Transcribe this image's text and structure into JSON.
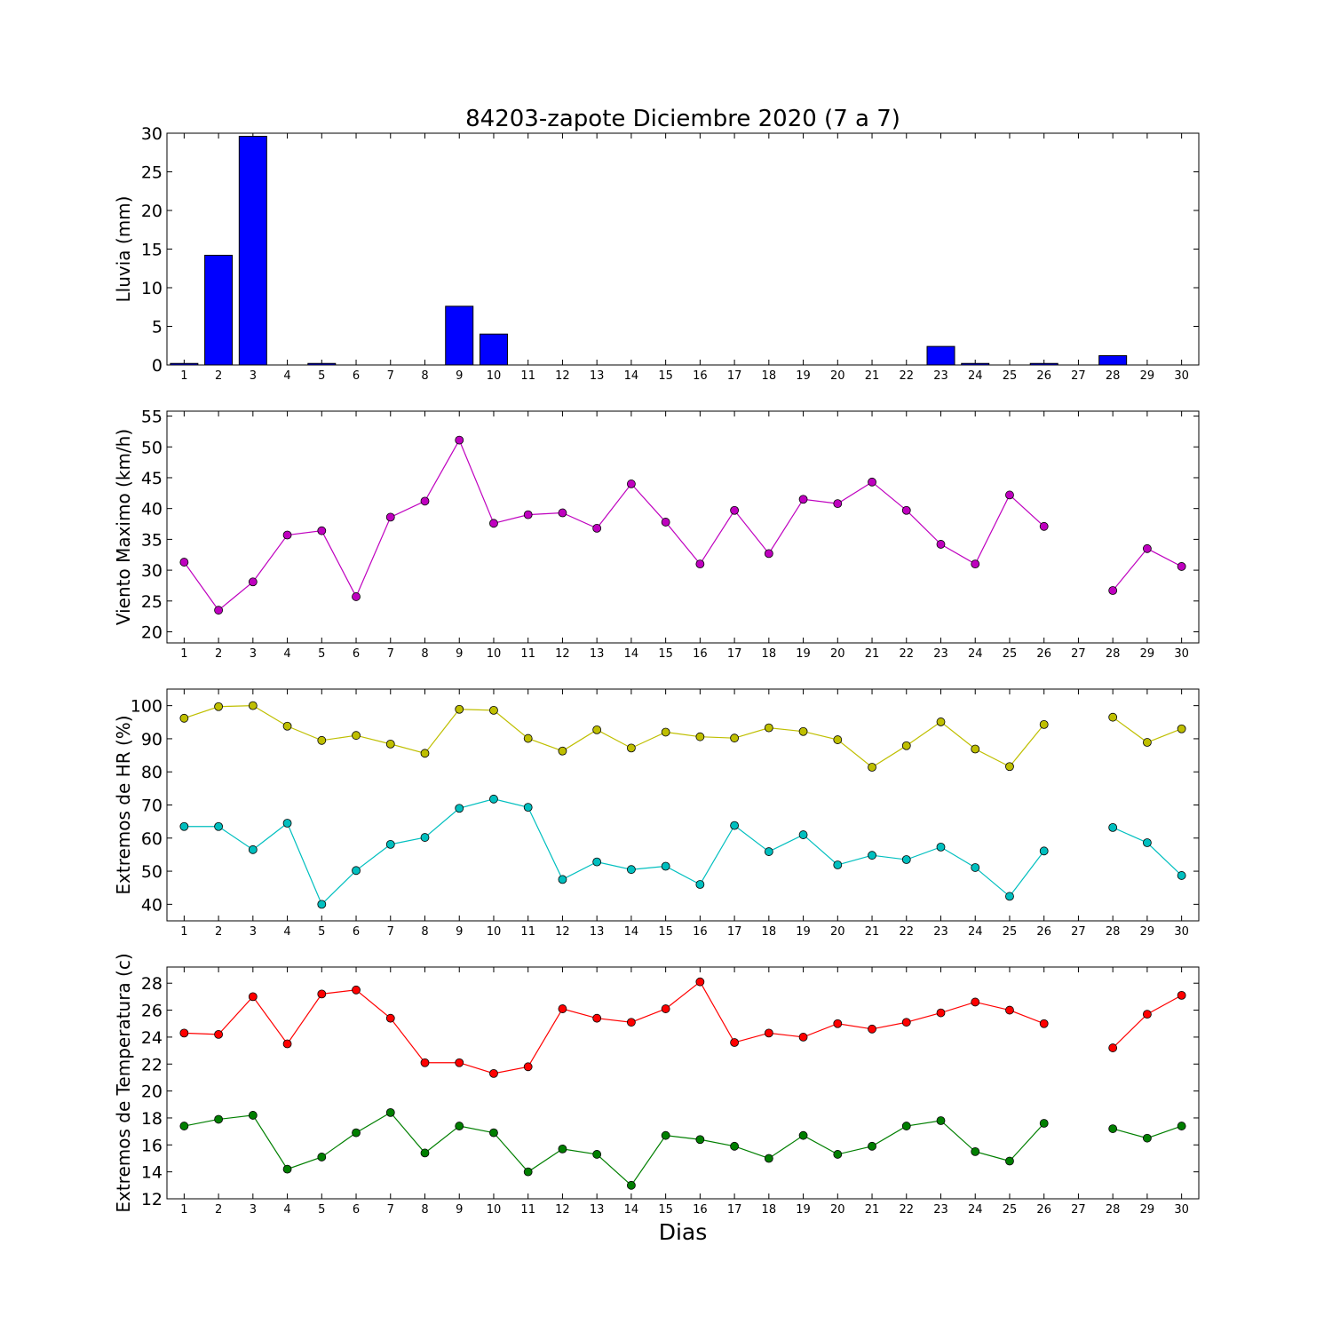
{
  "title": "84203-zapote Diciembre 2020  (7 a 7)",
  "xlabel": "Dias",
  "chart_data": [
    {
      "type": "bar",
      "ylabel": "Lluvia (mm)",
      "x": [
        1,
        2,
        3,
        4,
        5,
        6,
        7,
        8,
        9,
        10,
        11,
        12,
        13,
        14,
        15,
        16,
        17,
        18,
        19,
        20,
        21,
        22,
        23,
        24,
        25,
        26,
        27,
        28,
        29,
        30
      ],
      "xticks": [
        1,
        2,
        3,
        4,
        5,
        6,
        7,
        8,
        9,
        10,
        11,
        12,
        13,
        14,
        15,
        16,
        17,
        18,
        19,
        20,
        21,
        22,
        23,
        24,
        25,
        26,
        27,
        28,
        29,
        30
      ],
      "ylim": [
        0,
        30
      ],
      "yticks": [
        0,
        5,
        10,
        15,
        20,
        25,
        30
      ],
      "series": [
        {
          "color": "#0000ff",
          "values": [
            0.2,
            14.2,
            29.6,
            0,
            0.2,
            0,
            0,
            0,
            7.6,
            4.0,
            0,
            0,
            0,
            0,
            0,
            0,
            0,
            0,
            0,
            0,
            0,
            0,
            2.4,
            0.2,
            0,
            0.2,
            0,
            1.2,
            0,
            0
          ]
        }
      ]
    },
    {
      "type": "line",
      "ylabel": "Viento Maximo (km/h)",
      "x": [
        1,
        2,
        3,
        4,
        5,
        6,
        7,
        8,
        9,
        10,
        11,
        12,
        13,
        14,
        15,
        16,
        17,
        18,
        19,
        20,
        21,
        22,
        23,
        24,
        25,
        26,
        27,
        28,
        29,
        30
      ],
      "xticks": [
        1,
        2,
        3,
        4,
        5,
        6,
        7,
        8,
        9,
        10,
        11,
        12,
        13,
        14,
        15,
        16,
        17,
        18,
        19,
        20,
        21,
        22,
        23,
        24,
        25,
        26,
        27,
        28,
        29,
        30
      ],
      "ylim": [
        18.2,
        55.8
      ],
      "yticks": [
        20,
        25,
        30,
        35,
        40,
        45,
        50,
        55
      ],
      "series": [
        {
          "color": "#bf00bf",
          "values": [
            31.3,
            23.5,
            28.1,
            35.7,
            36.4,
            25.7,
            38.6,
            41.2,
            51.1,
            37.6,
            39.0,
            39.3,
            36.8,
            44.0,
            37.8,
            31.0,
            39.7,
            32.7,
            41.5,
            40.8,
            44.3,
            39.7,
            34.2,
            31.0,
            42.2,
            37.1,
            null,
            26.7,
            33.5,
            30.6
          ]
        }
      ]
    },
    {
      "type": "line",
      "ylabel": "Extremos de HR (%)",
      "x": [
        1,
        2,
        3,
        4,
        5,
        6,
        7,
        8,
        9,
        10,
        11,
        12,
        13,
        14,
        15,
        16,
        17,
        18,
        19,
        20,
        21,
        22,
        23,
        24,
        25,
        26,
        27,
        28,
        29,
        30
      ],
      "xticks": [
        1,
        2,
        3,
        4,
        5,
        6,
        7,
        8,
        9,
        10,
        11,
        12,
        13,
        14,
        15,
        16,
        17,
        18,
        19,
        20,
        21,
        22,
        23,
        24,
        25,
        26,
        27,
        28,
        29,
        30
      ],
      "ylim": [
        35,
        105
      ],
      "yticks": [
        40,
        50,
        60,
        70,
        80,
        90,
        100
      ],
      "series": [
        {
          "color": "#bfbf00",
          "values": [
            96.2,
            99.7,
            100,
            93.8,
            89.5,
            91.0,
            88.4,
            85.6,
            98.9,
            98.6,
            90.1,
            86.3,
            92.7,
            87.2,
            92.0,
            90.6,
            90.2,
            93.3,
            92.2,
            89.7,
            81.4,
            87.9,
            95.1,
            86.9,
            81.6,
            94.3,
            null,
            96.5,
            88.9,
            93.0
          ]
        },
        {
          "color": "#00bfbf",
          "values": [
            63.5,
            63.5,
            56.5,
            64.5,
            40.0,
            50.2,
            58.1,
            60.2,
            69.0,
            71.8,
            69.3,
            47.5,
            52.8,
            50.5,
            51.5,
            46.0,
            63.8,
            55.9,
            61.0,
            51.9,
            54.8,
            53.5,
            57.3,
            51.1,
            42.4,
            56.1,
            null,
            63.2,
            58.6,
            48.7
          ]
        }
      ]
    },
    {
      "type": "line",
      "ylabel": "Extremos de Temperatura (c)",
      "x": [
        1,
        2,
        3,
        4,
        5,
        6,
        7,
        8,
        9,
        10,
        11,
        12,
        13,
        14,
        15,
        16,
        17,
        18,
        19,
        20,
        21,
        22,
        23,
        24,
        25,
        26,
        27,
        28,
        29,
        30
      ],
      "xticks": [
        1,
        2,
        3,
        4,
        5,
        6,
        7,
        8,
        9,
        10,
        11,
        12,
        13,
        14,
        15,
        16,
        17,
        18,
        19,
        20,
        21,
        22,
        23,
        24,
        25,
        26,
        27,
        28,
        29,
        30
      ],
      "ylim": [
        12,
        29.2
      ],
      "yticks": [
        12,
        14,
        16,
        18,
        20,
        22,
        24,
        26,
        28
      ],
      "series": [
        {
          "color": "#ff0000",
          "values": [
            24.3,
            24.2,
            27.0,
            23.5,
            27.2,
            27.5,
            25.4,
            22.1,
            22.1,
            21.3,
            21.8,
            26.1,
            25.4,
            25.1,
            26.1,
            28.1,
            23.6,
            24.3,
            24.0,
            25.0,
            24.6,
            25.1,
            25.8,
            26.6,
            26.0,
            25.0,
            null,
            23.2,
            25.7,
            27.1
          ]
        },
        {
          "color": "#007f00",
          "values": [
            17.4,
            17.9,
            18.2,
            14.2,
            15.1,
            16.9,
            18.4,
            15.4,
            17.4,
            16.9,
            14.0,
            15.7,
            15.3,
            13.0,
            16.7,
            16.4,
            15.9,
            15.0,
            16.7,
            15.3,
            15.9,
            17.4,
            17.8,
            15.5,
            14.8,
            17.6,
            null,
            17.2,
            16.5,
            17.4
          ]
        }
      ]
    }
  ]
}
